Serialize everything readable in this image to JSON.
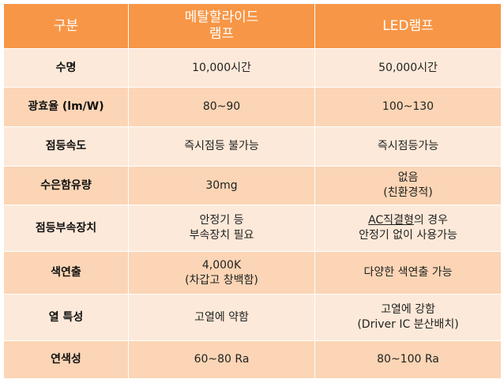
{
  "header": {
    "col1": "구분",
    "col2_line1": "메탈할라이드",
    "col2_line2": "램프",
    "col3": "LED램프"
  },
  "rows": [
    {
      "label": "수명",
      "metal_halide": [
        "10,000시간"
      ],
      "led": [
        "50,000시간"
      ]
    },
    {
      "label": "광효율 (lm/W)",
      "metal_halide": [
        "80~90"
      ],
      "led": [
        "100~130"
      ]
    },
    {
      "label": "점등속도",
      "metal_halide": [
        "즉시점등 불가능"
      ],
      "led": [
        "즉시점등가능"
      ]
    },
    {
      "label": "수은함유량",
      "metal_halide": [
        "30mg"
      ],
      "led": [
        "없음",
        "(친환경적)"
      ]
    },
    {
      "label": "점등부속장치",
      "metal_halide": [
        "안정기 등",
        "부속장치 필요"
      ],
      "led_ac": "AC직결형",
      "led_rest": "의 경우",
      "led_line2": "안정기 없이 사용가능"
    },
    {
      "label": "색연출",
      "metal_halide": [
        "4,000K",
        "(차갑고 창백함)"
      ],
      "led": [
        "다양한 색연출 가능"
      ]
    },
    {
      "label": "열 특성",
      "metal_halide": [
        "고열에 약함"
      ],
      "led": [
        "고열에 강함",
        "(Driver IC 분산배치)"
      ]
    },
    {
      "label": "연색성",
      "metal_halide": [
        "60~80 Ra"
      ],
      "led": [
        "80~100 Ra"
      ]
    }
  ],
  "colors": {
    "header_bg": "#f79646",
    "row_light": "#fde9d9",
    "row_dark": "#fbd5b5"
  }
}
